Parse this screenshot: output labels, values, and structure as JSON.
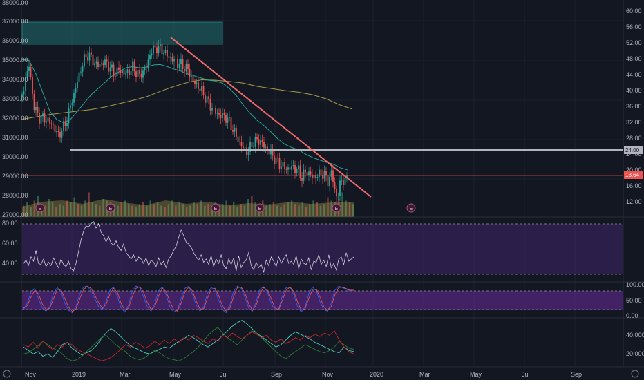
{
  "chart_data": [
    {
      "type": "candlestick",
      "panel": "price",
      "left_axis_ticks": [
        "38000.00",
        "37000.00",
        "36000.00",
        "35000.00",
        "34000.00",
        "33000.00",
        "32000.00",
        "31000.00",
        "30000.00",
        "29000.00",
        "28000.00",
        "27000.00"
      ],
      "right_axis_ticks": [
        "60.00",
        "56.00",
        "52.00",
        "48.00",
        "44.00",
        "40.00",
        "36.00",
        "32.00",
        "28.00",
        "24.00",
        "20.00",
        "16.00",
        "12.00"
      ],
      "left_ylim": [
        26900,
        38150
      ],
      "right_ylim": [
        9.7,
        61.6
      ],
      "price_path_right_scale": [
        [
          0,
          38.5
        ],
        [
          5,
          43
        ],
        [
          10,
          46
        ],
        [
          18,
          35.5
        ],
        [
          25,
          33.5
        ],
        [
          35,
          33
        ],
        [
          45,
          31.5
        ],
        [
          52,
          29
        ],
        [
          58,
          30.5
        ],
        [
          63,
          32
        ],
        [
          68,
          35
        ],
        [
          78,
          41
        ],
        [
          88,
          47
        ],
        [
          96,
          49
        ],
        [
          103,
          47
        ],
        [
          110,
          46
        ],
        [
          118,
          47
        ],
        [
          125,
          46
        ],
        [
          134,
          44
        ],
        [
          140,
          45
        ],
        [
          150,
          44
        ],
        [
          160,
          45.5
        ],
        [
          170,
          43.5
        ],
        [
          181,
          46
        ],
        [
          186,
          49.5
        ],
        [
          195,
          50.5
        ],
        [
          202,
          50
        ],
        [
          213,
          48
        ],
        [
          222,
          47
        ],
        [
          232,
          46
        ],
        [
          240,
          45
        ],
        [
          248,
          42
        ],
        [
          255,
          41
        ],
        [
          263,
          39
        ],
        [
          270,
          37
        ],
        [
          278,
          35
        ],
        [
          286,
          34
        ],
        [
          296,
          33.5
        ],
        [
          301,
          32
        ],
        [
          307,
          30
        ],
        [
          314,
          27.5
        ],
        [
          320,
          26
        ],
        [
          326,
          25
        ],
        [
          335,
          27.5
        ],
        [
          344,
          28
        ],
        [
          350,
          26.5
        ],
        [
          358,
          25
        ],
        [
          368,
          23
        ],
        [
          378,
          21.5
        ],
        [
          384,
          21
        ],
        [
          392,
          21.5
        ],
        [
          400,
          20.5
        ],
        [
          405,
          19
        ],
        [
          412,
          20.5
        ],
        [
          420,
          19
        ],
        [
          428,
          19.5
        ],
        [
          436,
          20
        ],
        [
          442,
          18
        ],
        [
          448,
          20
        ],
        [
          452,
          16.5
        ],
        [
          456,
          13.5
        ],
        [
          460,
          17.5
        ],
        [
          466,
          18.5
        ],
        [
          472,
          18
        ]
      ],
      "moving_average_fast_right_scale": [
        [
          0,
          47.5
        ],
        [
          10,
          47.3
        ],
        [
          20,
          44
        ],
        [
          30,
          39.5
        ],
        [
          40,
          35
        ],
        [
          50,
          33
        ],
        [
          60,
          32.2
        ],
        [
          70,
          33
        ],
        [
          80,
          35
        ],
        [
          90,
          37
        ],
        [
          100,
          39
        ],
        [
          110,
          40.5
        ],
        [
          120,
          42
        ],
        [
          130,
          43.5
        ],
        [
          140,
          44.5
        ],
        [
          150,
          45.5
        ],
        [
          160,
          45.8
        ],
        [
          170,
          45.5
        ],
        [
          180,
          45.7
        ],
        [
          190,
          46.2
        ],
        [
          200,
          46.3
        ],
        [
          210,
          45.8
        ],
        [
          220,
          45.2
        ],
        [
          230,
          44.7
        ],
        [
          240,
          44
        ],
        [
          250,
          43.5
        ],
        [
          260,
          43
        ],
        [
          270,
          42.5
        ],
        [
          280,
          42.3
        ],
        [
          290,
          41.8
        ],
        [
          300,
          40.5
        ],
        [
          310,
          38.8
        ],
        [
          320,
          36.5
        ],
        [
          330,
          34.5
        ],
        [
          340,
          32.8
        ],
        [
          350,
          31.5
        ],
        [
          360,
          30
        ],
        [
          370,
          28.3
        ],
        [
          380,
          27
        ],
        [
          390,
          26.2
        ],
        [
          400,
          25.6
        ],
        [
          410,
          24.6
        ],
        [
          420,
          23.8
        ],
        [
          430,
          23.2
        ],
        [
          440,
          22.6
        ],
        [
          450,
          22.2
        ],
        [
          460,
          21.3
        ],
        [
          472,
          20.7
        ]
      ],
      "moving_average_slow_right_scale": [
        [
          0,
          33
        ],
        [
          20,
          33.6
        ],
        [
          40,
          34.2
        ],
        [
          60,
          34.6
        ],
        [
          80,
          35
        ],
        [
          100,
          35.4
        ],
        [
          120,
          36
        ],
        [
          140,
          36.8
        ],
        [
          160,
          37.6
        ],
        [
          180,
          38.5
        ],
        [
          200,
          39.8
        ],
        [
          220,
          41
        ],
        [
          240,
          42
        ],
        [
          260,
          42.6
        ],
        [
          280,
          42.5
        ],
        [
          300,
          42.2
        ],
        [
          320,
          41.8
        ],
        [
          340,
          41
        ],
        [
          360,
          40.5
        ],
        [
          380,
          40
        ],
        [
          400,
          39.6
        ],
        [
          420,
          39
        ],
        [
          440,
          38
        ],
        [
          460,
          36.5
        ],
        [
          478,
          35.5
        ]
      ],
      "volume_bars": [
        6,
        8,
        5,
        9,
        12,
        7,
        6,
        10,
        8,
        5,
        7,
        6,
        9,
        8,
        11,
        7,
        6,
        9,
        14,
        8,
        7,
        6,
        10,
        9,
        8,
        7,
        6,
        8,
        9,
        7,
        6,
        5,
        7,
        8,
        6,
        9,
        7,
        8,
        6,
        5,
        7,
        9,
        6,
        8,
        7,
        5,
        6,
        8,
        7,
        9,
        6,
        7,
        5,
        8,
        6,
        7,
        9,
        6,
        8,
        5,
        7,
        6,
        10,
        12,
        8,
        7,
        9,
        6,
        7,
        8,
        6,
        5,
        7,
        8,
        9,
        7,
        6,
        8,
        5,
        7,
        9,
        8,
        6,
        7,
        11,
        9,
        8,
        10,
        14,
        9,
        8,
        7
      ],
      "support_level": "24.00",
      "last_value_label": "18.64",
      "event_markers": [
        "E",
        "E",
        "E",
        "E",
        "E",
        "E"
      ],
      "x_tick_labels": [
        "Nov",
        "2019",
        "Mar",
        "May",
        "Jul",
        "Sep",
        "Nov",
        "2020",
        "Mar",
        "May",
        "Jul",
        "Sep"
      ]
    },
    {
      "type": "line",
      "panel": "oscillator-1",
      "y_ticks": [
        "80.00",
        "60.00",
        "40.00"
      ],
      "ylim": [
        24,
        82
      ],
      "band": [
        30,
        80
      ],
      "values": [
        40,
        43,
        38,
        46,
        42,
        52,
        40,
        39,
        44,
        37,
        41,
        38,
        45,
        40,
        36,
        44,
        39,
        37,
        42,
        35,
        33,
        40,
        51,
        62,
        70,
        75,
        74,
        77,
        79,
        73,
        77,
        69,
        66,
        60,
        65,
        59,
        57,
        61,
        55,
        52,
        58,
        50,
        47,
        44,
        48,
        42,
        46,
        44,
        40,
        45,
        38,
        43,
        41,
        37,
        45,
        39,
        42,
        36,
        44,
        47,
        52,
        56,
        64,
        71,
        66,
        60,
        58,
        55,
        50,
        46,
        43,
        48,
        41,
        44,
        39,
        47,
        37,
        44,
        40,
        48,
        38,
        35,
        44,
        39,
        45,
        33,
        47,
        36,
        41,
        43,
        50,
        38,
        34,
        41,
        36,
        39,
        32,
        43,
        38,
        46,
        42,
        37,
        46,
        40,
        44,
        48,
        40,
        42,
        39,
        47,
        35,
        44,
        40,
        39,
        45,
        34,
        42,
        41,
        48,
        39,
        43,
        37,
        48,
        36,
        40,
        34,
        44,
        46,
        39,
        50,
        42,
        44,
        46
      ],
      "line_color": "#d1d4dc"
    },
    {
      "type": "line",
      "panel": "oscillator-2",
      "y_ticks": [
        "100.00",
        "50.00",
        "0.00"
      ],
      "ylim": [
        -2,
        104
      ],
      "band": [
        20,
        80
      ],
      "series": [
        {
          "color": "#2962ff",
          "values": [
            20,
            40,
            75,
            88,
            55,
            25,
            15,
            30,
            72,
            90,
            78,
            40,
            18,
            10,
            30,
            70,
            92,
            95,
            80,
            55,
            30,
            20,
            45,
            82,
            92,
            62,
            25,
            12,
            35,
            80,
            95,
            90,
            60,
            28,
            15,
            40,
            80,
            92,
            68,
            30,
            12,
            18,
            55,
            88,
            94,
            70,
            35,
            15,
            28,
            72,
            90,
            85,
            50,
            20,
            10,
            35,
            80,
            95,
            88,
            60,
            25,
            15,
            45,
            85,
            93,
            75,
            40,
            18,
            22,
            65,
            90,
            92,
            68,
            30,
            12,
            28,
            70,
            92,
            80,
            45,
            20,
            15,
            40,
            82,
            95,
            90,
            85,
            80,
            82
          ]
        },
        {
          "color": "#ef5350",
          "values": [
            25,
            32,
            60,
            82,
            70,
            38,
            20,
            24,
            55,
            84,
            84,
            55,
            28,
            14,
            22,
            55,
            84,
            94,
            88,
            66,
            42,
            24,
            36,
            68,
            88,
            75,
            40,
            18,
            25,
            62,
            88,
            93,
            75,
            42,
            20,
            30,
            64,
            88,
            78,
            45,
            20,
            15,
            40,
            76,
            92,
            80,
            48,
            22,
            22,
            56,
            84,
            88,
            65,
            32,
            15,
            25,
            62,
            90,
            92,
            72,
            38,
            18,
            34,
            72,
            90,
            82,
            55,
            25,
            20,
            50,
            82,
            92,
            78,
            45,
            18,
            22,
            55,
            84,
            85,
            60,
            30,
            17,
            30,
            68,
            90,
            92,
            87,
            82,
            82
          ]
        }
      ]
    },
    {
      "type": "line",
      "panel": "directional-index",
      "y_ticks": [
        "40.0000",
        "20.0000"
      ],
      "ylim": [
        12,
        52
      ],
      "series": [
        {
          "color": "#26a69a",
          "values": [
            28,
            25,
            22,
            24,
            20,
            22,
            19,
            24,
            30,
            32,
            27,
            24,
            21,
            23,
            25,
            29,
            35,
            40,
            44,
            41,
            37,
            33,
            29,
            27,
            25,
            23,
            22,
            24,
            26,
            28,
            27,
            30,
            33,
            35,
            38,
            36,
            33,
            30,
            28,
            31,
            34,
            38,
            42,
            46,
            49,
            51,
            48,
            44,
            40,
            37,
            34,
            31,
            28,
            30,
            34,
            38,
            41,
            39,
            37,
            35,
            32,
            30,
            28,
            26,
            24,
            23,
            28,
            25,
            24
          ]
        },
        {
          "color": "#2e7d32",
          "values": [
            22,
            23,
            26,
            29,
            33,
            30,
            27,
            25,
            22,
            18,
            16,
            17,
            20,
            24,
            28,
            32,
            36,
            38,
            34,
            30,
            27,
            24,
            20,
            18,
            17,
            19,
            22,
            25,
            23,
            20,
            18,
            17,
            16,
            18,
            21,
            24,
            28,
            33,
            38,
            42,
            45,
            40,
            36,
            33,
            30,
            34,
            38,
            42,
            40,
            36,
            32,
            28,
            24,
            20,
            18,
            21,
            24,
            27,
            30,
            28,
            26,
            24,
            23,
            25,
            28,
            33,
            30,
            27,
            26
          ]
        },
        {
          "color": "#c62828",
          "values": [
            30,
            28,
            32,
            27,
            33,
            29,
            26,
            30,
            28,
            32,
            30,
            26,
            24,
            22,
            20,
            18,
            16,
            17,
            19,
            22,
            26,
            30,
            28,
            32,
            30,
            27,
            29,
            33,
            30,
            34,
            31,
            35,
            32,
            36,
            34,
            38,
            36,
            33,
            31,
            35,
            33,
            38,
            36,
            40,
            37,
            35,
            38,
            41,
            39,
            36,
            38,
            34,
            32,
            35,
            31,
            33,
            36,
            34,
            38,
            36,
            39,
            37,
            40,
            38,
            42,
            34,
            28,
            24,
            22
          ]
        }
      ]
    }
  ]
}
